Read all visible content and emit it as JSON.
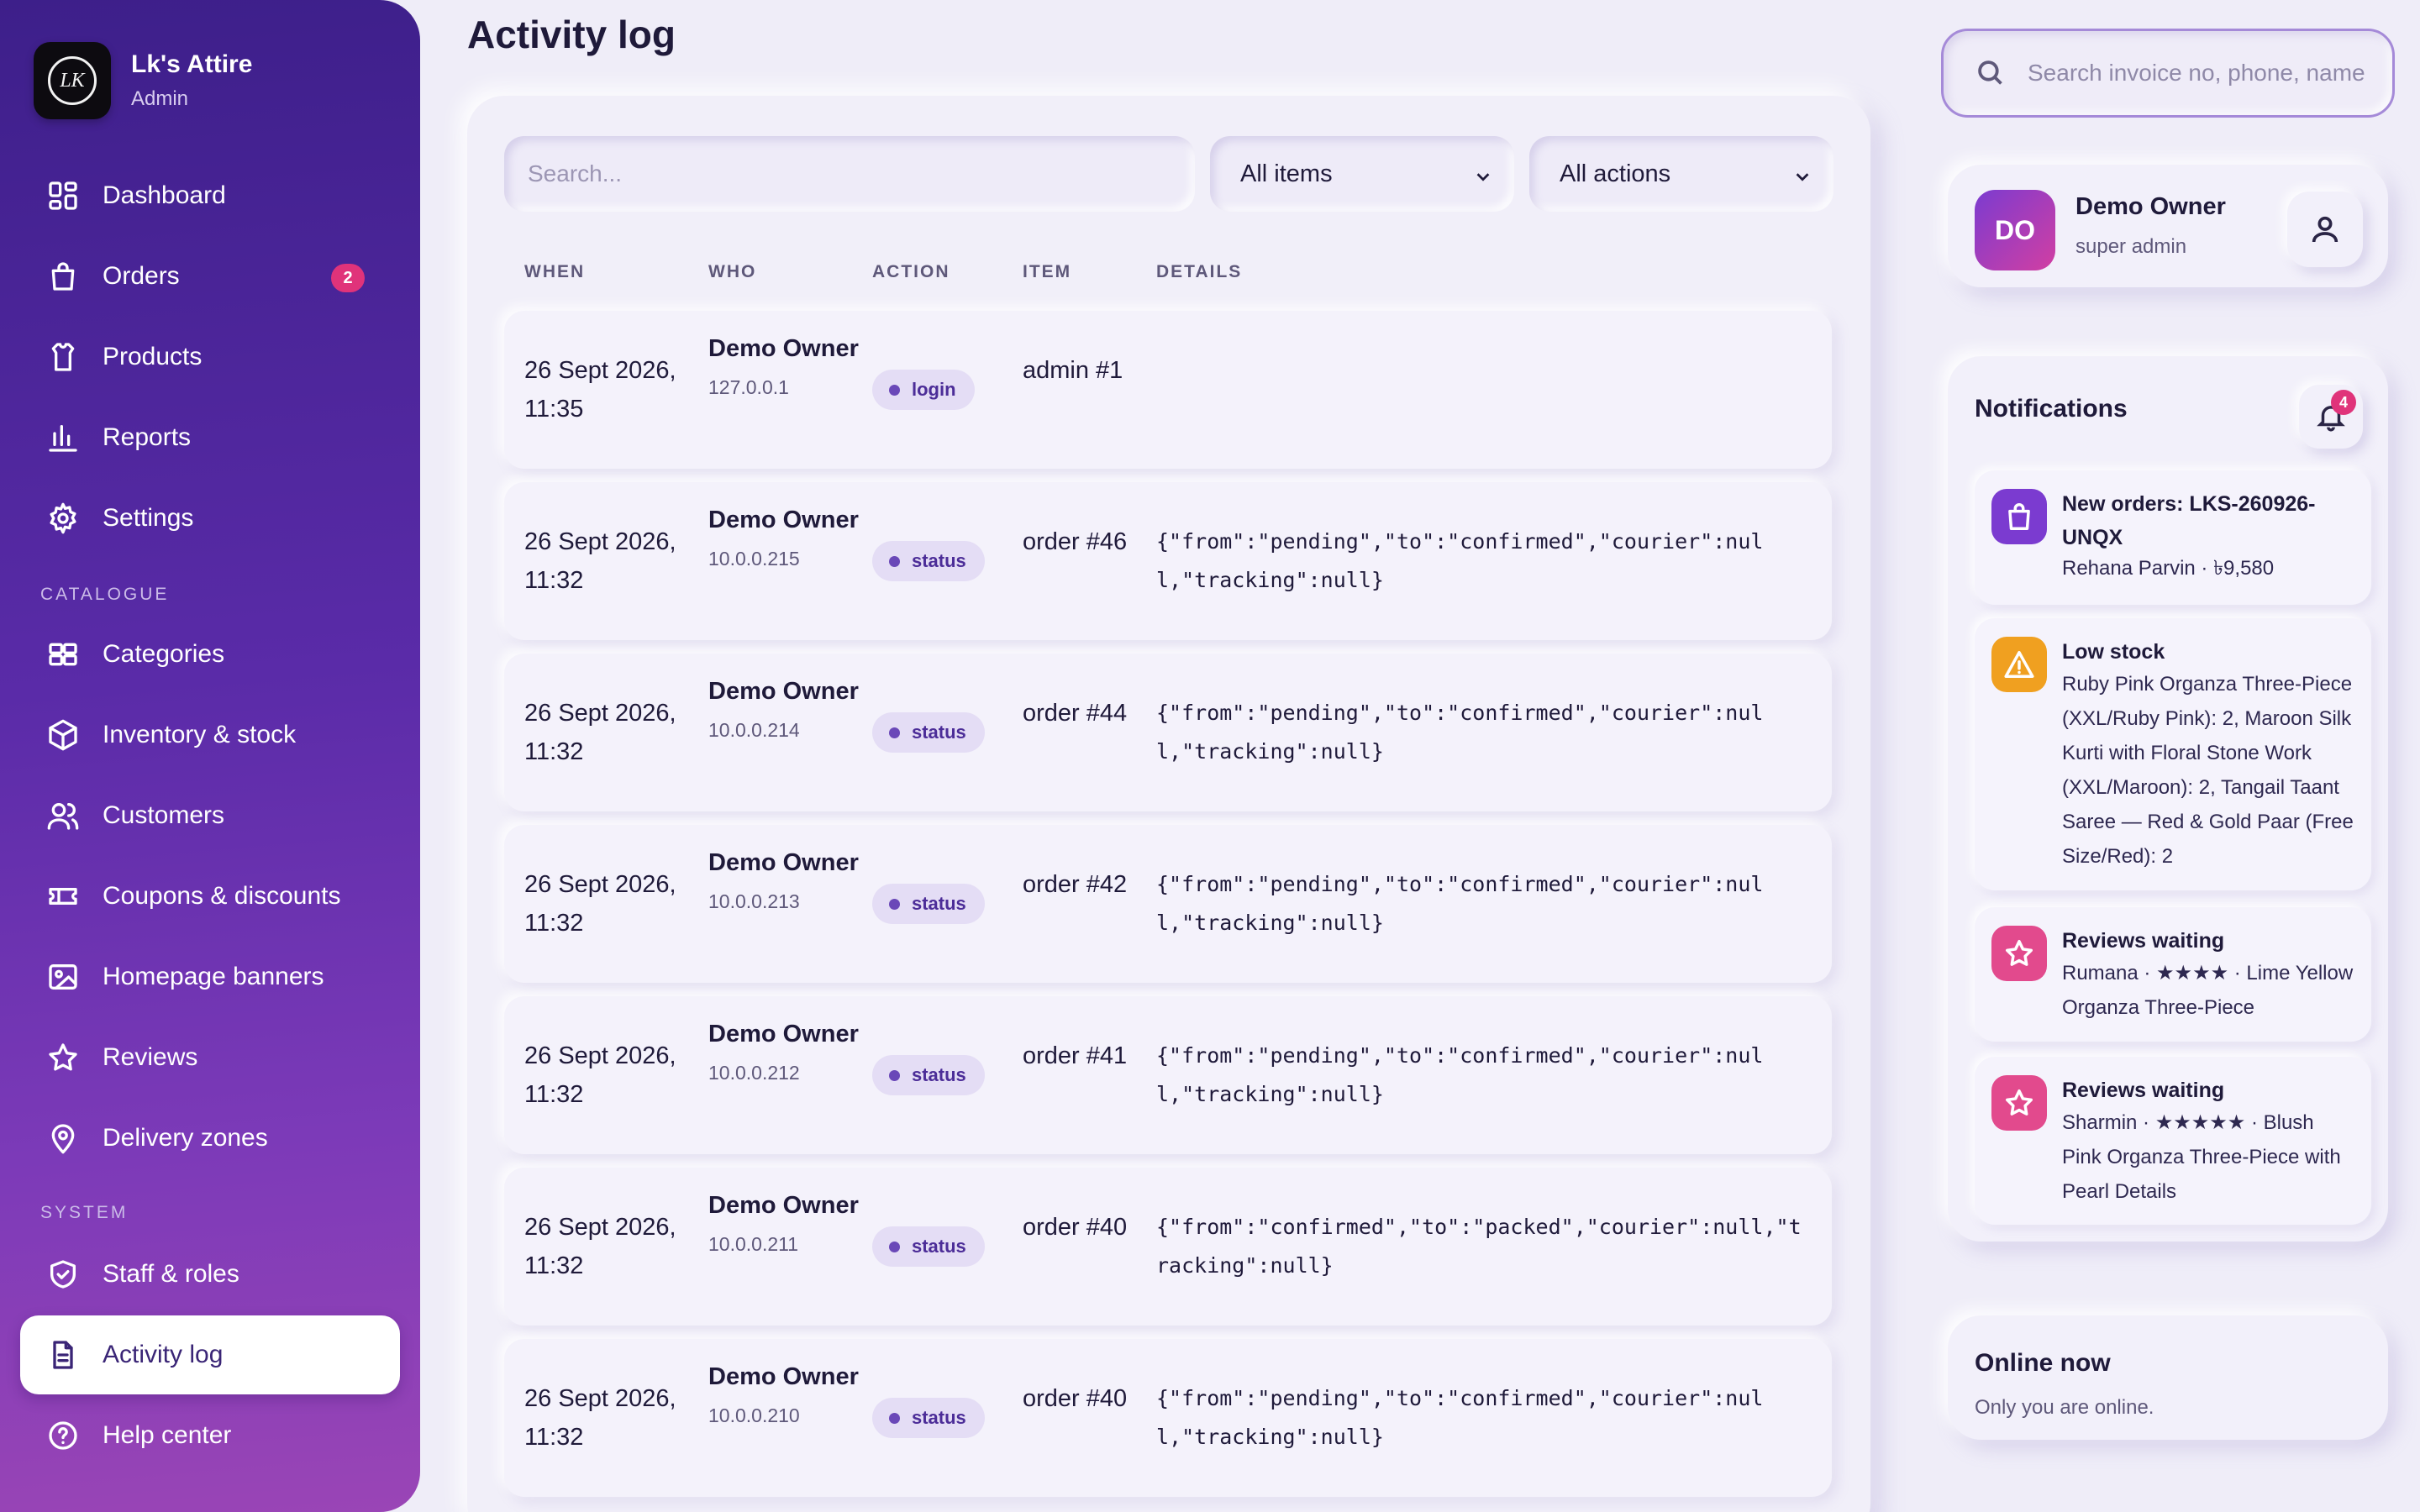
{
  "brand": {
    "name": "Lk's Attire",
    "role": "Admin",
    "logo_text": "LK"
  },
  "sidebar": {
    "items": [
      {
        "label": "Dashboard",
        "icon": "dashboard-grid-icon"
      },
      {
        "label": "Orders",
        "icon": "shopping-bag-icon",
        "badge": "2"
      },
      {
        "label": "Products",
        "icon": "shirt-icon"
      },
      {
        "label": "Reports",
        "icon": "bar-chart-icon"
      },
      {
        "label": "Settings",
        "icon": "gear-icon"
      }
    ],
    "catalogue_heading": "CATALOGUE",
    "catalogue": [
      {
        "label": "Categories",
        "icon": "categories-icon"
      },
      {
        "label": "Inventory & stock",
        "icon": "box-icon"
      },
      {
        "label": "Customers",
        "icon": "users-icon"
      },
      {
        "label": "Coupons & discounts",
        "icon": "ticket-icon"
      },
      {
        "label": "Homepage banners",
        "icon": "image-icon"
      },
      {
        "label": "Reviews",
        "icon": "star-icon"
      },
      {
        "label": "Delivery zones",
        "icon": "map-pin-icon"
      }
    ],
    "system_heading": "SYSTEM",
    "system": [
      {
        "label": "Staff & roles",
        "icon": "shield-icon"
      },
      {
        "label": "Activity log",
        "icon": "document-icon",
        "active": true
      },
      {
        "label": "Help center",
        "icon": "help-circle-icon"
      }
    ]
  },
  "page": {
    "title": "Activity log"
  },
  "filters": {
    "search_placeholder": "Search...",
    "items_select": "All items",
    "actions_select": "All actions"
  },
  "table": {
    "headers": [
      "WHEN",
      "WHO",
      "ACTION",
      "ITEM",
      "DETAILS"
    ],
    "rows": [
      {
        "when": "26 Sept 2026, 11:35",
        "who": "Demo Owner",
        "ip": "127.0.0.1",
        "action": "login",
        "item": "admin #1",
        "details": ""
      },
      {
        "when": "26 Sept 2026, 11:32",
        "who": "Demo Owner",
        "ip": "10.0.0.215",
        "action": "status",
        "item": "order #46",
        "details": "{\"from\":\"pending\",\"to\":\"confirmed\",\"courier\":null,\"tracking\":null}"
      },
      {
        "when": "26 Sept 2026, 11:32",
        "who": "Demo Owner",
        "ip": "10.0.0.214",
        "action": "status",
        "item": "order #44",
        "details": "{\"from\":\"pending\",\"to\":\"confirmed\",\"courier\":null,\"tracking\":null}"
      },
      {
        "when": "26 Sept 2026, 11:32",
        "who": "Demo Owner",
        "ip": "10.0.0.213",
        "action": "status",
        "item": "order #42",
        "details": "{\"from\":\"pending\",\"to\":\"confirmed\",\"courier\":null,\"tracking\":null}"
      },
      {
        "when": "26 Sept 2026, 11:32",
        "who": "Demo Owner",
        "ip": "10.0.0.212",
        "action": "status",
        "item": "order #41",
        "details": "{\"from\":\"pending\",\"to\":\"confirmed\",\"courier\":null,\"tracking\":null}"
      },
      {
        "when": "26 Sept 2026, 11:32",
        "who": "Demo Owner",
        "ip": "10.0.0.211",
        "action": "status",
        "item": "order #40",
        "details": "{\"from\":\"confirmed\",\"to\":\"packed\",\"courier\":null,\"tracking\":null}"
      },
      {
        "when": "26 Sept 2026, 11:32",
        "who": "Demo Owner",
        "ip": "10.0.0.210",
        "action": "status",
        "item": "order #40",
        "details": "{\"from\":\"pending\",\"to\":\"confirmed\",\"courier\":null,\"tracking\":null}"
      }
    ]
  },
  "topbar": {
    "search_placeholder": "Search invoice no, phone, name"
  },
  "user": {
    "initials": "DO",
    "name": "Demo Owner",
    "role": "super admin"
  },
  "notifications": {
    "title": "Notifications",
    "count": "4",
    "items": [
      {
        "icon": "shopping-bag-icon",
        "color": "#7b3bd0",
        "title": "New orders: LKS-260926-UNQX",
        "body": "Rehana Parvin · ৳9,580"
      },
      {
        "icon": "warning-icon",
        "color": "#f0a020",
        "title": "Low stock",
        "body": "Ruby Pink Organza Three-Piece (XXL/Ruby Pink): 2, Maroon Silk Kurti with Floral Stone Work (XXL/Maroon): 2, Tangail Taant Saree — Red & Gold Paar (Free Size/Red): 2"
      },
      {
        "icon": "star-icon",
        "color": "#e24a8d",
        "title": "Reviews waiting",
        "body": "Rumana · ★★★★ · Lime Yellow Organza Three-Piece"
      },
      {
        "icon": "star-icon",
        "color": "#e24a8d",
        "title": "Reviews waiting",
        "body": "Sharmin · ★★★★★ · Blush Pink Organza Three-Piece with Pearl Details"
      }
    ]
  },
  "online": {
    "title": "Online now",
    "subtitle": "Only you are online."
  },
  "colors": {
    "sidebar_top": "#3d1f8a",
    "sidebar_bottom": "#9a45b6",
    "badge": "#e0337a",
    "accent": "#4c2d98"
  }
}
